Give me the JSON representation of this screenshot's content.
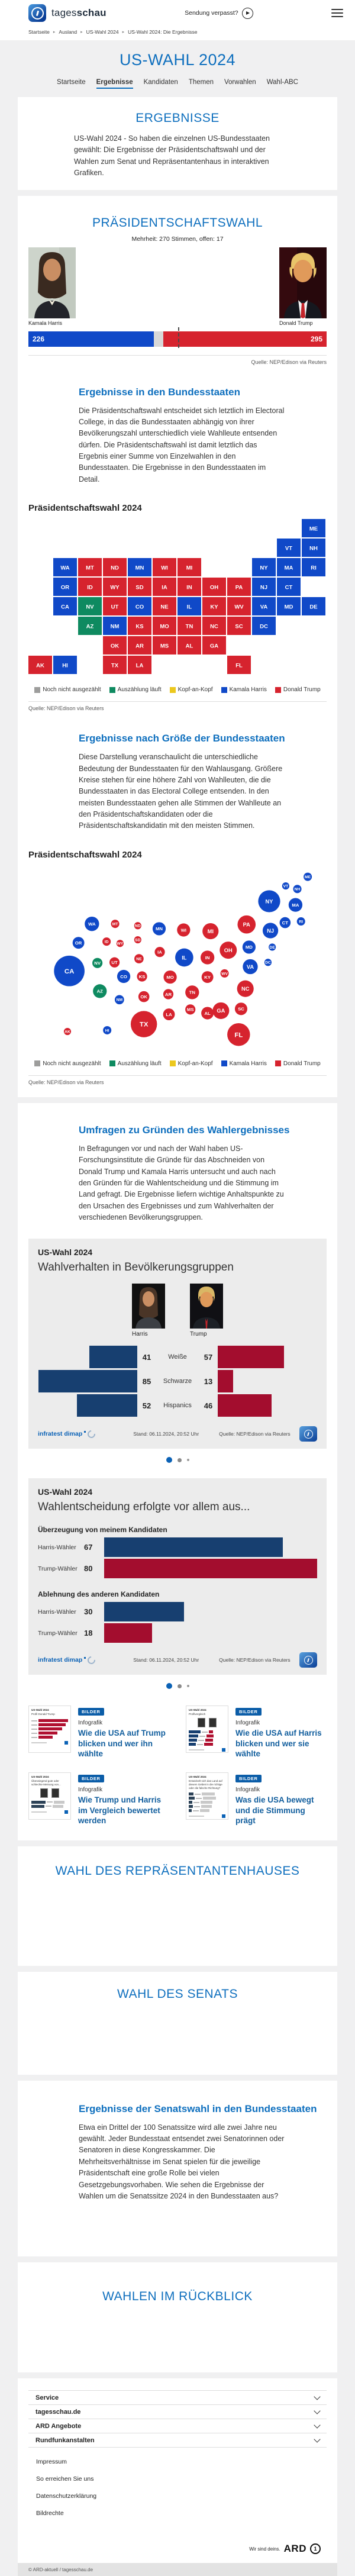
{
  "header": {
    "brand_light": "tages",
    "brand_bold": "schau",
    "missed_broadcast": "Sendung verpasst?"
  },
  "breadcrumb": {
    "items": [
      "Startseite",
      "Ausland",
      "US-Wahl 2024",
      "US-Wahl 2024: Die Ergebnisse"
    ]
  },
  "hero": {
    "title": "US-WAHL 2024",
    "tabs": [
      {
        "label": "Startseite",
        "active": false
      },
      {
        "label": "Ergebnisse",
        "active": true
      },
      {
        "label": "Kandidaten",
        "active": false
      },
      {
        "label": "Themen",
        "active": false
      },
      {
        "label": "Vorwahlen",
        "active": false
      },
      {
        "label": "Wahl-ABC",
        "active": false
      }
    ]
  },
  "results_card": {
    "title": "ERGEBNISSE",
    "intro": "US-Wahl 2024 - So haben die einzelnen US-Bundesstaaten gewählt: Die Ergebnisse der Präsidentschaftswahl und der Wahlen zum Senat und Repräsentantenhaus in interaktiven Grafiken."
  },
  "presidential": {
    "title": "PRÄSIDENTSCHAFTSWAHL",
    "majority_note": "Mehrheit: 270 Stimmen, offen: 17",
    "harris_name": "Kamala Harris",
    "trump_name": "Donald Trump",
    "harris_votes": "226",
    "trump_votes": "295",
    "source": "Quelle: NEP/Edison via Reuters",
    "legend": [
      {
        "label": "Noch nicht ausgezählt",
        "color": "#9d9d9c"
      },
      {
        "label": "Auszählung läuft",
        "color": "#0e8a60"
      },
      {
        "label": "Kopf-an-Kopf",
        "color": "#ecc81d"
      },
      {
        "label": "Kamala Harris",
        "color": "#1049c8"
      },
      {
        "label": "Donald Trump",
        "color": "#d6232e"
      }
    ],
    "states_section": {
      "heading": "Ergebnisse in den Bundesstaaten",
      "body": "Die Präsidentschaftswahl entscheidet sich letztlich im Electoral College, in das die Bundesstaaten abhängig von ihrer Bevölkerungszahl unterschiedlich viele Wahlleute entsenden dürfen. Die Präsidentschaftswahl ist damit letztlich das Ergebnis einer Summe von Einzelwahlen in den Bundesstaaten. Die Ergebnisse in den Bundesstaaten im Detail.",
      "map_title": "Präsidentschaftswahl 2024",
      "source": "Quelle: NEP/Edison via Reuters"
    },
    "size_section": {
      "heading": "Ergebnisse nach Größe der Bundesstaaten",
      "body": "Diese Darstellung veranschaulicht die unterschiedliche Bedeutung der Bundesstaaten für den Wahlausgang. Größere Kreise stehen für eine höhere Zahl von Wahlleuten, die die Bundesstaaten in das Electoral College entsenden. In den meisten Bundesstaaten gehen alle Stimmen der Wahlleute an den Präsidentschaftskandidaten oder die Präsidentschaftskandidatin mit den meisten Stimmen.",
      "map_title": "Präsidentschaftswahl 2024",
      "source": "Quelle: NEP/Edison via Reuters"
    }
  },
  "surveys": {
    "heading": "Umfragen zu Gründen des Wahlergebnisses",
    "body": "In Befragungen vor und nach der Wahl haben US-Forschungsinstitute die Gründe für das Abschneiden von Donald Trump und Kamala Harris untersucht und auch nach den Gründen für die Wahlentscheidung und die Stimmung im Land gefragt. Die Ergebnisse liefern wichtige Anhaltspunkte zu den Ursachen des Ergebnisses und zum Wahlverhalten der verschiedenen Bevölkerungsgruppen."
  },
  "infographic1": {
    "kicker": "US-Wahl 2024",
    "title": "Wahlverhalten in Bevölkerungsgruppen",
    "harris_label": "Harris",
    "trump_label": "Trump",
    "brand": "infratest dimap",
    "stand": "Stand: 06.11.2024, 20:52 Uhr",
    "source": "Quelle: NEP/Edison via Reuters"
  },
  "infographic2": {
    "kicker": "US-Wahl 2024",
    "title": "Wahlentscheidung erfolgte vor allem aus...",
    "brand": "infratest dimap",
    "stand": "Stand: 06.11.2024, 20:52 Uhr",
    "source": "Quelle: NEP/Edison via Reuters"
  },
  "teasers": [
    {
      "badge": "BILDER",
      "kicker": "Infografik",
      "title": "Wie die USA auf Trump blicken und wer ihn wählte",
      "thumb_kicker": "US-Wahl 2024",
      "thumb_title": "Profil Donald Trump"
    },
    {
      "badge": "BILDER",
      "kicker": "Infografik",
      "title": "Wie die USA auf Harris blicken und wer sie wählte",
      "thumb_kicker": "US-Wahl 2024",
      "thumb_title": "Profilvergleich"
    },
    {
      "badge": "BILDER",
      "kicker": "Infografik",
      "title": "Wie Trump und Harris im Vergleich bewertet werden",
      "thumb_kicker": "US-Wahl 2024",
      "thumb_title": "Überwiegend gute oder schlechte Meinung von..."
    },
    {
      "badge": "BILDER",
      "kicker": "Infografik",
      "title": "Was die USA bewegt und die Stimmung prägt",
      "thumb_kicker": "US-Wahl 2024",
      "thumb_title": "Entwickelt sich das Land auf diesem Gebiet in die richtige oder die falsche Richtung?"
    }
  ],
  "house_section": {
    "title": "WAHL DES REPRÄSENTANTENHAUSES"
  },
  "senate_section": {
    "title": "WAHL DES SENATS"
  },
  "senate_states": {
    "heading": "Ergebnisse der Senatswahl in den Bundesstaaten",
    "body": "Etwa ein Drittel der 100 Senatssitze wird alle zwei Jahre neu gewählt. Jeder Bundesstaat entsendet zwei Senatorinnen oder Senatoren in diese Kongresskammer. Die Mehrheitsverhältnisse im Senat spielen für die jeweilige Präsidentschaft eine große Rolle bei vielen Gesetzgebungsvorhaben. Wie sehen die Ergebnisse der Wahlen um die Senatssitze 2024 in den Bundesstaaten aus?"
  },
  "retrospective_section": {
    "title": "WAHLEN IM RÜCKBLICK"
  },
  "footer": {
    "accordions": [
      "Service",
      "tagesschau.de",
      "ARD Angebote",
      "Rundfunkanstalten"
    ],
    "links": [
      "Impressum",
      "So erreichen Sie uns",
      "Datenschutzerklärung",
      "Bildrechte"
    ],
    "ard_claim": "Wir sind deins.",
    "ard_brand": "ARD",
    "copyright": "© ARD-aktuell / tagesschau.de"
  },
  "chart_data": [
    {
      "type": "bar",
      "title": "Electoral College Stimmen",
      "categories": [
        "Kamala Harris",
        "offen",
        "Donald Trump"
      ],
      "values": [
        226,
        17,
        295
      ],
      "majority": 270,
      "colors": {
        "harris": "#1049c8",
        "open": "#d8d8d8",
        "trump": "#d6232e"
      }
    },
    {
      "type": "map",
      "variants": [
        "choropleth",
        "bubble-cartogram"
      ],
      "title": "Präsidentschaftswahl 2024",
      "legend": [
        "Noch nicht ausgezählt",
        "Auszählung läuft",
        "Kopf-an-Kopf",
        "Kamala Harris",
        "Donald Trump"
      ],
      "states": [
        {
          "code": "AK",
          "winner": "Trump",
          "electors": 3
        },
        {
          "code": "AL",
          "winner": "Trump",
          "electors": 9
        },
        {
          "code": "AR",
          "winner": "Trump",
          "electors": 6
        },
        {
          "code": "AZ",
          "winner": "Auszählung läuft",
          "electors": 11
        },
        {
          "code": "CA",
          "winner": "Harris",
          "electors": 54
        },
        {
          "code": "CO",
          "winner": "Harris",
          "electors": 10
        },
        {
          "code": "CT",
          "winner": "Harris",
          "electors": 7
        },
        {
          "code": "DC",
          "winner": "Harris",
          "electors": 3
        },
        {
          "code": "DE",
          "winner": "Harris",
          "electors": 3
        },
        {
          "code": "FL",
          "winner": "Trump",
          "electors": 30
        },
        {
          "code": "GA",
          "winner": "Trump",
          "electors": 16
        },
        {
          "code": "HI",
          "winner": "Harris",
          "electors": 4
        },
        {
          "code": "IA",
          "winner": "Trump",
          "electors": 6
        },
        {
          "code": "ID",
          "winner": "Trump",
          "electors": 4
        },
        {
          "code": "IL",
          "winner": "Harris",
          "electors": 19
        },
        {
          "code": "IN",
          "winner": "Trump",
          "electors": 11
        },
        {
          "code": "KS",
          "winner": "Trump",
          "electors": 6
        },
        {
          "code": "KY",
          "winner": "Trump",
          "electors": 8
        },
        {
          "code": "LA",
          "winner": "Trump",
          "electors": 8
        },
        {
          "code": "MA",
          "winner": "Harris",
          "electors": 11
        },
        {
          "code": "MD",
          "winner": "Harris",
          "electors": 10
        },
        {
          "code": "ME",
          "winner": "Harris",
          "electors": 4
        },
        {
          "code": "MI",
          "winner": "Trump",
          "electors": 15
        },
        {
          "code": "MN",
          "winner": "Harris",
          "electors": 10
        },
        {
          "code": "MO",
          "winner": "Trump",
          "electors": 10
        },
        {
          "code": "MS",
          "winner": "Trump",
          "electors": 6
        },
        {
          "code": "MT",
          "winner": "Trump",
          "electors": 4
        },
        {
          "code": "NC",
          "winner": "Trump",
          "electors": 16
        },
        {
          "code": "ND",
          "winner": "Trump",
          "electors": 3
        },
        {
          "code": "NE",
          "winner": "Trump",
          "electors": 5
        },
        {
          "code": "NH",
          "winner": "Harris",
          "electors": 4
        },
        {
          "code": "NJ",
          "winner": "Harris",
          "electors": 14
        },
        {
          "code": "NM",
          "winner": "Harris",
          "electors": 5
        },
        {
          "code": "NV",
          "winner": "Auszählung läuft",
          "electors": 6
        },
        {
          "code": "NY",
          "winner": "Harris",
          "electors": 28
        },
        {
          "code": "OH",
          "winner": "Trump",
          "electors": 17
        },
        {
          "code": "OK",
          "winner": "Trump",
          "electors": 7
        },
        {
          "code": "OR",
          "winner": "Harris",
          "electors": 8
        },
        {
          "code": "PA",
          "winner": "Trump",
          "electors": 19
        },
        {
          "code": "RI",
          "winner": "Harris",
          "electors": 4
        },
        {
          "code": "SC",
          "winner": "Trump",
          "electors": 9
        },
        {
          "code": "SD",
          "winner": "Trump",
          "electors": 3
        },
        {
          "code": "TN",
          "winner": "Trump",
          "electors": 11
        },
        {
          "code": "TX",
          "winner": "Trump",
          "electors": 40
        },
        {
          "code": "UT",
          "winner": "Trump",
          "electors": 6
        },
        {
          "code": "VA",
          "winner": "Harris",
          "electors": 13
        },
        {
          "code": "VT",
          "winner": "Harris",
          "electors": 3
        },
        {
          "code": "WA",
          "winner": "Harris",
          "electors": 12
        },
        {
          "code": "WI",
          "winner": "Trump",
          "electors": 10
        },
        {
          "code": "WV",
          "winner": "Trump",
          "electors": 4
        },
        {
          "code": "WY",
          "winner": "Trump",
          "electors": 3
        }
      ]
    },
    {
      "type": "bar",
      "title": "Wahlverhalten in Bevölkerungsgruppen",
      "categories": [
        "Weiße",
        "Schwarze",
        "Hispanics"
      ],
      "series": [
        {
          "name": "Harris",
          "values": [
            41,
            85,
            52
          ]
        },
        {
          "name": "Trump",
          "values": [
            57,
            13,
            46
          ]
        }
      ],
      "unit": "Prozent"
    },
    {
      "type": "bar",
      "title": "Wahlentscheidung erfolgte vor allem aus...",
      "groups": [
        {
          "label": "Überzeugung von meinem Kandidaten",
          "rows": [
            {
              "name": "Harris-Wähler",
              "value": 67
            },
            {
              "name": "Trump-Wähler",
              "value": 80
            }
          ]
        },
        {
          "label": "Ablehnung des anderen Kandidaten",
          "rows": [
            {
              "name": "Harris-Wähler",
              "value": 30
            },
            {
              "name": "Trump-Wähler",
              "value": 18
            }
          ]
        }
      ],
      "unit": "Prozent"
    }
  ]
}
